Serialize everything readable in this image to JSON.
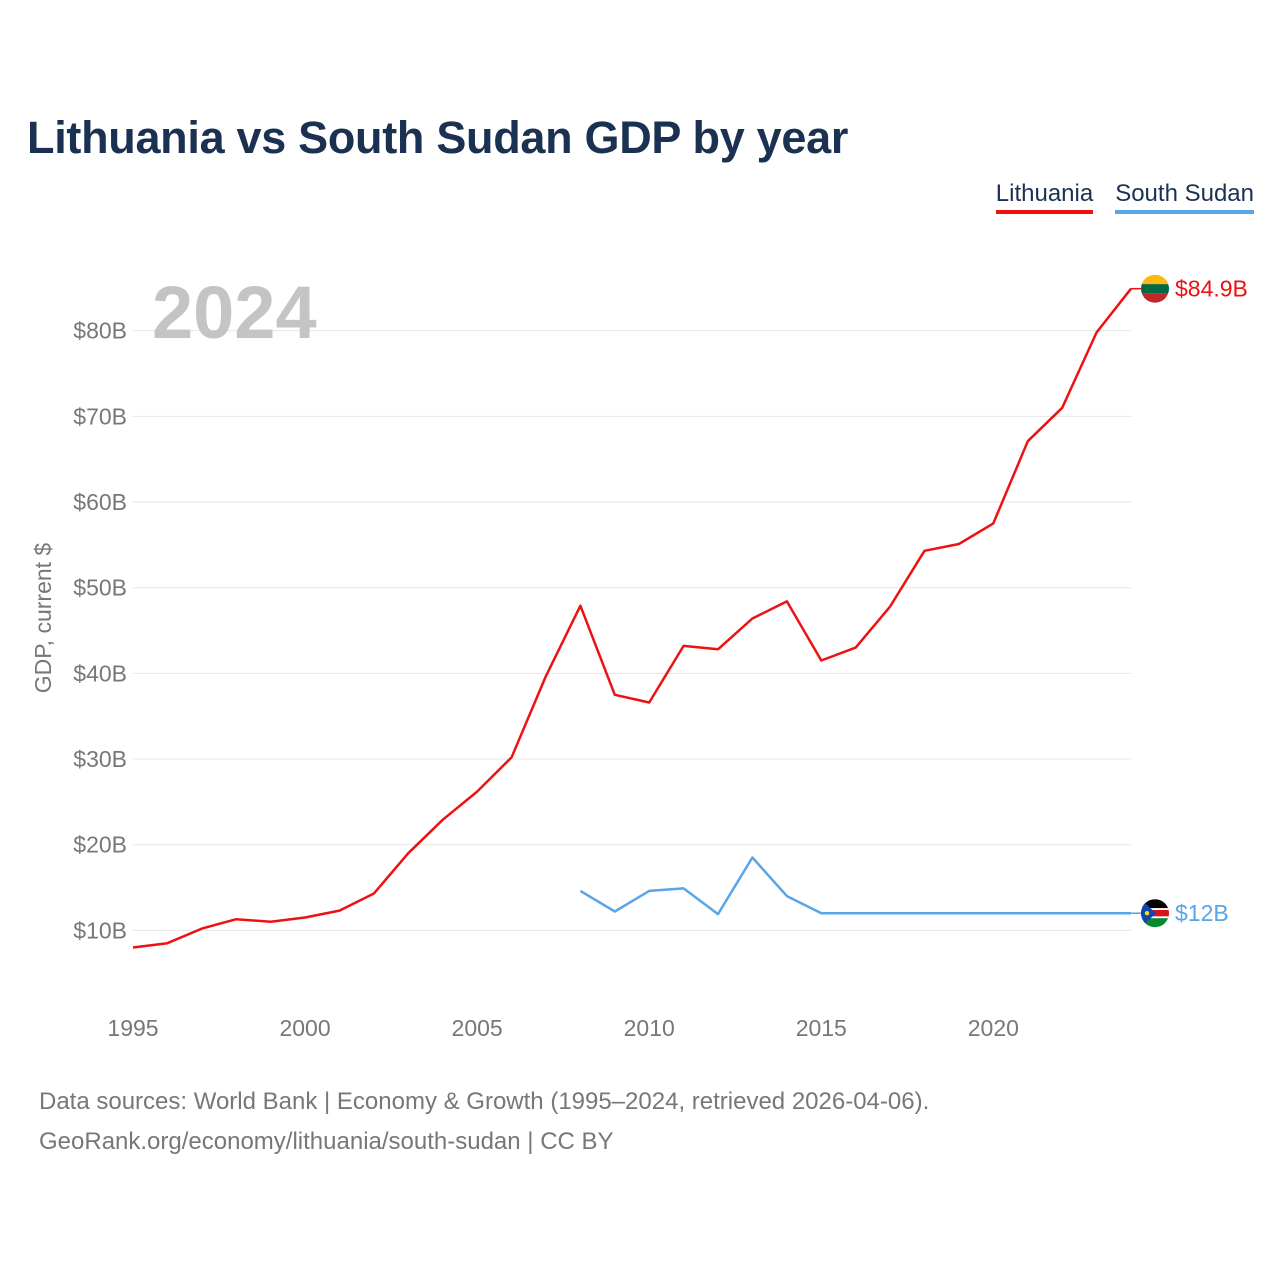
{
  "header": {
    "title": "Lithuania vs South Sudan GDP by year"
  },
  "legend": [
    {
      "label": "Lithuania",
      "color": "#ee1111"
    },
    {
      "label": "South Sudan",
      "color": "#5aa4e8"
    }
  ],
  "footer": {
    "line1": "Data sources: World Bank | Economy & Growth (1995–2024, retrieved 2026-04-06).",
    "line2": "GeoRank.org/economy/lithuania/south-sudan | CC BY"
  },
  "chart_data": {
    "type": "line",
    "title": "Lithuania vs South Sudan GDP by year",
    "year_label": "2024",
    "ylabel": "GDP, current $",
    "xlabel": "",
    "xlim": [
      1995,
      2024
    ],
    "ylim": [
      0,
      90
    ],
    "y_unit": "billion USD",
    "y_ticks": [
      10,
      20,
      30,
      40,
      50,
      60,
      70,
      80
    ],
    "y_tick_labels": [
      "$10B",
      "$20B",
      "$30B",
      "$40B",
      "$50B",
      "$60B",
      "$70B",
      "$80B"
    ],
    "x_ticks": [
      1995,
      2000,
      2005,
      2010,
      2015,
      2020
    ],
    "x_tick_labels": [
      "1995",
      "2000",
      "2005",
      "2010",
      "2015",
      "2020"
    ],
    "grid": true,
    "series": [
      {
        "name": "Lithuania",
        "color": "#ee1111",
        "flag": "lithuania-flag",
        "end_label": "$84.9B",
        "end_value": 84.9,
        "x": [
          1995,
          1996,
          1997,
          1998,
          1999,
          2000,
          2001,
          2002,
          2003,
          2004,
          2005,
          2006,
          2007,
          2008,
          2009,
          2010,
          2011,
          2012,
          2013,
          2014,
          2015,
          2016,
          2017,
          2018,
          2019,
          2020,
          2021,
          2022,
          2023,
          2024
        ],
        "values": [
          8.0,
          8.5,
          10.2,
          11.3,
          11.0,
          11.5,
          12.3,
          14.3,
          19.0,
          22.9,
          26.2,
          30.2,
          39.7,
          47.9,
          37.5,
          36.6,
          43.2,
          42.8,
          46.4,
          48.4,
          41.5,
          43.0,
          47.8,
          54.3,
          55.1,
          57.5,
          67.1,
          71.0,
          79.8,
          84.9
        ]
      },
      {
        "name": "South Sudan",
        "color": "#5aa4e8",
        "flag": "south-sudan-flag",
        "end_label": "$12B",
        "end_value": 12.0,
        "x": [
          2008,
          2009,
          2010,
          2011,
          2012,
          2013,
          2014,
          2015,
          2016,
          2017,
          2018,
          2019,
          2020,
          2021,
          2022,
          2023,
          2024
        ],
        "values": [
          14.6,
          12.2,
          14.6,
          14.9,
          11.9,
          18.5,
          14.0,
          12.0,
          12.0,
          12.0,
          12.0,
          12.0,
          12.0,
          12.0,
          12.0,
          12.0,
          12.0
        ]
      }
    ]
  }
}
